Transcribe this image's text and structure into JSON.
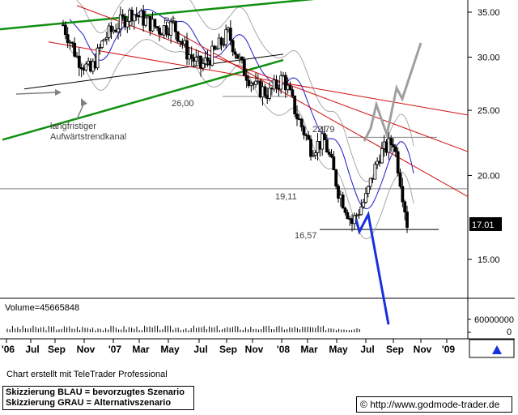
{
  "price_panel": {
    "current_price_label": "17.01",
    "y_ticks": [
      "35.00",
      "30.00",
      "25.00",
      "20.00",
      "15.00"
    ]
  },
  "volume_panel": {
    "label": "Volume=45665848",
    "y_ticks": [
      "60000000",
      "0"
    ]
  },
  "x_axis": {
    "ticks": [
      "'06",
      "Jul",
      "Sep",
      "Nov",
      "'07",
      "Mar",
      "May",
      "Jul",
      "Sep",
      "Nov",
      "'08",
      "Mar",
      "May",
      "Jul",
      "Sep",
      "Nov",
      "'09"
    ]
  },
  "annotations": {
    "rs": "RS",
    "level_26": "26,00",
    "level_2279": "22,79",
    "level_1911": "19,11",
    "level_1657": "16,57",
    "trend_line1": "langfristiger",
    "trend_line2": "Aufwärtstrendkanal"
  },
  "footer": {
    "credit": "Chart erstellt mit TeleTrader Professional",
    "legend_blue": "Skizzierung BLAU = bevorzugtes Szenario",
    "legend_gray": "Skizzierung GRAU = Alternativszenario",
    "url": "http://www.godmode-trader.de",
    "copyright_symbol": "©"
  },
  "chart_data": {
    "type": "candlestick",
    "x": [
      "2006-05",
      "2006-06",
      "2006-07",
      "2006-08",
      "2006-09",
      "2006-10",
      "2006-11",
      "2006-12",
      "2007-01",
      "2007-02",
      "2007-03",
      "2007-04",
      "2007-05",
      "2007-06",
      "2007-07",
      "2007-08",
      "2007-09",
      "2007-10",
      "2007-11",
      "2007-12",
      "2008-01",
      "2008-02",
      "2008-03",
      "2008-04",
      "2008-05",
      "2008-06"
    ],
    "close": [
      33.5,
      30.0,
      28.5,
      32.0,
      33.5,
      35.0,
      34.0,
      33.0,
      33.5,
      30.5,
      29.0,
      30.5,
      32.5,
      29.0,
      27.0,
      26.5,
      28.0,
      24.5,
      22.0,
      22.5,
      19.0,
      17.0,
      18.5,
      21.5,
      22.5,
      17.0
    ],
    "ylim": [
      12.5,
      36.5
    ],
    "ylog": true,
    "horizontal_levels": [
      26.0,
      22.79,
      19.11,
      16.57
    ],
    "scenario_blue": [
      17.2,
      16.5,
      17.5,
      12.0
    ],
    "scenario_gray": [
      22.5,
      23.5,
      25.5,
      23.0,
      27.0,
      26.0,
      31.5
    ],
    "volume_ylim": [
      0,
      60000000
    ],
    "last_volume": 45665848,
    "series": [
      {
        "name": "Close",
        "values": [
          33.5,
          30.0,
          28.5,
          32.0,
          33.5,
          35.0,
          34.0,
          33.0,
          33.5,
          30.5,
          29.0,
          30.5,
          32.5,
          29.0,
          27.0,
          26.5,
          28.0,
          24.5,
          22.0,
          22.5,
          19.0,
          17.0,
          18.5,
          21.5,
          22.5,
          17.0
        ]
      }
    ],
    "colors": {
      "up_trend": "#109010",
      "down_trend": "#d01010",
      "moving_average": "#1c1cc8",
      "scenario_blue": "#1830e0",
      "scenario_gray": "#a0a0a0",
      "bands": "#a8a8a8"
    }
  }
}
